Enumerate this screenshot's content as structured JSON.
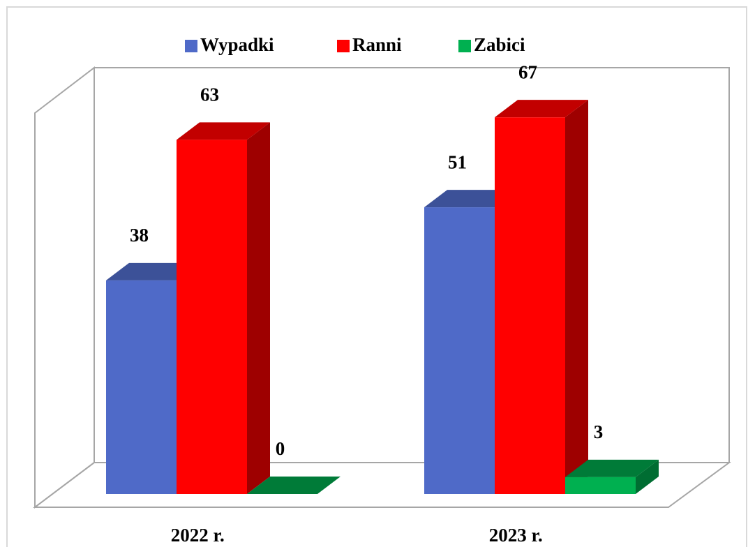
{
  "chart_data": {
    "type": "bar3d",
    "categories": [
      "2022 r.",
      "2023 r."
    ],
    "series": [
      {
        "name": "Wypadki",
        "color": "#4f6ac8",
        "values": [
          38,
          51
        ]
      },
      {
        "name": "Ranni",
        "color": "#ff0000",
        "values": [
          63,
          67
        ]
      },
      {
        "name": "Zabici",
        "color": "#00b050",
        "values": [
          0,
          3
        ]
      }
    ],
    "ylim": [
      0,
      70
    ],
    "legend": "top"
  }
}
